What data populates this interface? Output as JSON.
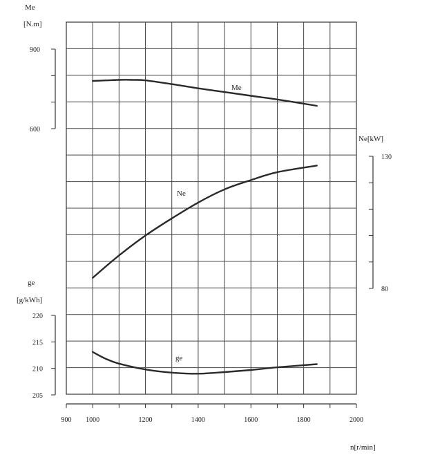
{
  "chart_data": {
    "type": "line",
    "x_axis": {
      "label": "n[r/min]",
      "ticks": [
        900,
        1000,
        1200,
        1400,
        1600,
        1800,
        2000
      ],
      "range": [
        900,
        2000
      ]
    },
    "axes": {
      "me": {
        "label_line1": "Me",
        "label_line2": "[N.m]",
        "ticks": [
          900,
          600
        ],
        "range": [
          600,
          900
        ]
      },
      "ne": {
        "label": "Ne[kW]",
        "ticks": [
          130,
          80
        ],
        "range": [
          80,
          130
        ]
      },
      "ge": {
        "label_line1": "ge",
        "label_line2": "[g/kWh]",
        "ticks": [
          220,
          215,
          210,
          205
        ],
        "range": [
          205,
          220
        ]
      }
    },
    "grid": true,
    "series": [
      {
        "name": "Me",
        "axis": "me",
        "x": [
          1000,
          1050,
          1100,
          1150,
          1200,
          1300,
          1400,
          1500,
          1600,
          1700,
          1850
        ],
        "y": [
          780,
          782,
          784,
          784,
          782,
          768,
          752,
          738,
          724,
          710,
          686
        ]
      },
      {
        "name": "Ne",
        "axis": "ne",
        "x": [
          1000,
          1100,
          1200,
          1300,
          1400,
          1500,
          1600,
          1700,
          1850
        ],
        "y": [
          84,
          92.5,
          100,
          106.5,
          112.5,
          117.5,
          121,
          124,
          126.5
        ]
      },
      {
        "name": "ge",
        "axis": "ge",
        "x": [
          1000,
          1050,
          1100,
          1200,
          1300,
          1400,
          1500,
          1600,
          1700,
          1850
        ],
        "y": [
          213.1,
          211.8,
          210.9,
          209.8,
          209.2,
          209.0,
          209.3,
          209.7,
          210.2,
          210.8
        ]
      }
    ]
  }
}
